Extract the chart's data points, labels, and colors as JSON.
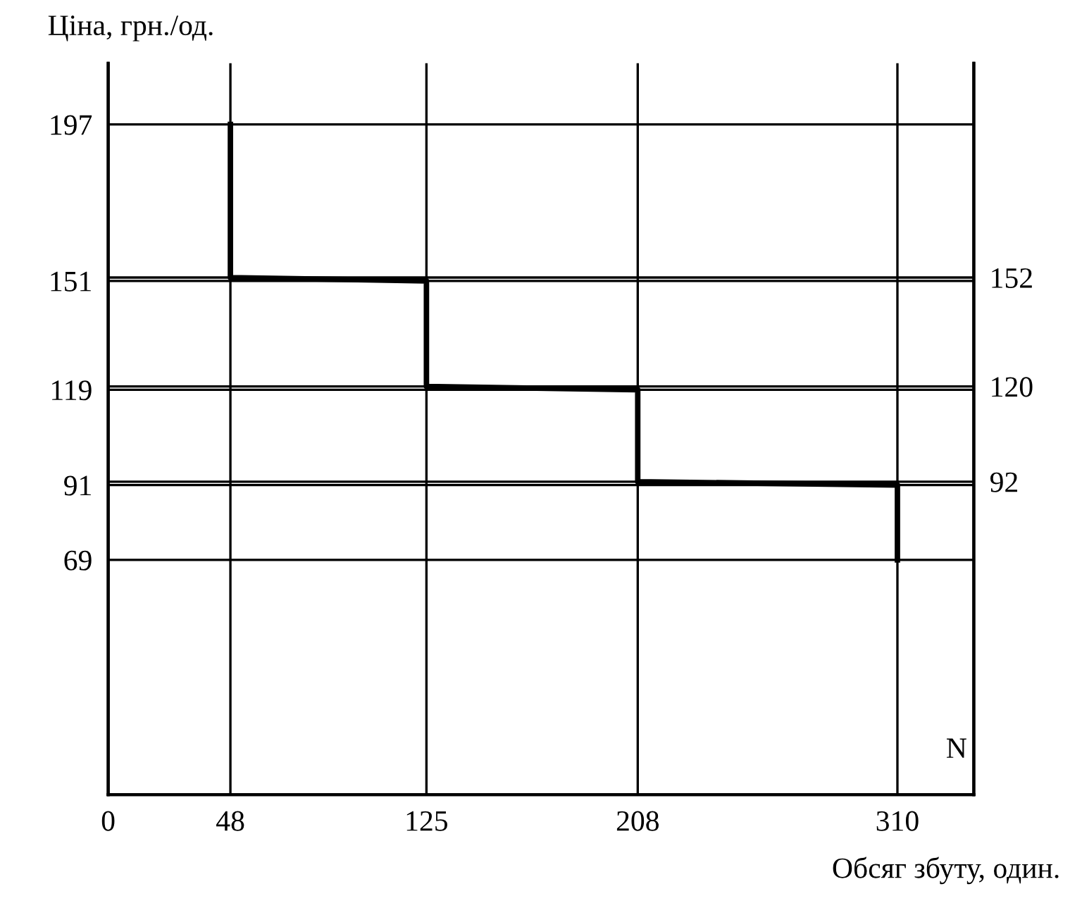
{
  "chart_data": {
    "type": "line",
    "ylabel": "Ціна, грн./од.",
    "xlabel": "Обсяг збуту, один.",
    "annotations": [
      "N"
    ],
    "x": [
      48,
      48,
      125,
      125,
      208,
      208,
      310,
      310
    ],
    "series": [
      {
        "color": "#000000",
        "values": [
          197,
          152,
          151,
          120,
          119,
          92,
          91,
          69
        ]
      }
    ],
    "xlim": [
      0,
      340
    ],
    "xticks": [
      0,
      48,
      125,
      208,
      310
    ],
    "ylim": [
      0,
      215
    ],
    "yticks": [
      69,
      91,
      119,
      151,
      197
    ],
    "y2lim": [
      0,
      215
    ],
    "y2ticks": [
      92,
      120,
      152
    ],
    "grid": true,
    "line_style": "solid",
    "marker": "none"
  }
}
